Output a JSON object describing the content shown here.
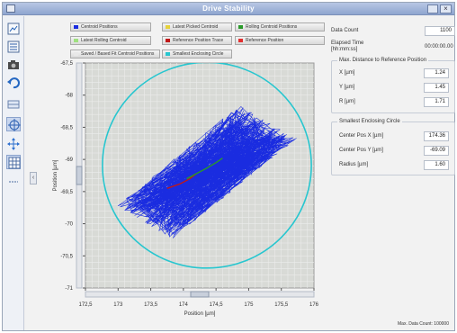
{
  "window": {
    "title": "Drive Stability"
  },
  "toolbar": {
    "tools": [
      {
        "name": "export-image-icon"
      },
      {
        "name": "export-data-icon"
      },
      {
        "name": "camera-icon"
      },
      {
        "name": "undo-icon"
      },
      {
        "name": "toggle-view-icon"
      },
      {
        "name": "target-icon"
      },
      {
        "name": "move-icon"
      },
      {
        "name": "grid-icon"
      },
      {
        "name": "separator-icon"
      }
    ]
  },
  "legend": {
    "items": [
      {
        "label": "Centroid Positions",
        "color": "#1a2ce0"
      },
      {
        "label": "Latest Picked Centroid",
        "color": "#e6d23a"
      },
      {
        "label": "Rolling Centroid Positions",
        "color": "#2a9a2a"
      },
      {
        "label": "Latest Rolling Centroid",
        "color": "#9fe080"
      },
      {
        "label": "Reference Position Trace",
        "color": "#c01818"
      },
      {
        "label": "Reference Position",
        "color": "#e33030"
      },
      {
        "label": "Saved / Based Fit Centroid Positions",
        "color": "#e8e8e8"
      },
      {
        "label": "Smallest Enclosing Circle",
        "color": "#27c6cf"
      }
    ]
  },
  "chart_data": {
    "type": "scatter",
    "title": "",
    "xlabel": "Position [µm]",
    "ylabel": "Position [µm]",
    "xlim": [
      172.5,
      176
    ],
    "ylim": [
      -71,
      -67.5
    ],
    "x_ticks": [
      "172,5",
      "173",
      "173,5",
      "174",
      "174,5",
      "175",
      "175,5",
      "176"
    ],
    "x_tick_values": [
      172.5,
      173,
      173.5,
      174,
      174.5,
      175,
      175.5,
      176
    ],
    "y_ticks": [
      "-67,5",
      "-68",
      "-68,5",
      "-69",
      "-69,5",
      "-70",
      "-70,5",
      "-71"
    ],
    "y_tick_values": [
      -67.5,
      -68,
      -68.5,
      -69,
      -69.5,
      -70,
      -70.5,
      -71
    ],
    "grid": true,
    "enclosing_circle": {
      "center_x": 174.36,
      "center_y": -69.09,
      "radius": 1.6,
      "color": "#27c6cf"
    },
    "reference_trace": {
      "x": [
        173.75,
        173.95,
        174.1,
        174.2
      ],
      "y": [
        -69.45,
        -69.38,
        -69.3,
        -69.22
      ],
      "color": "#c01818"
    },
    "rolling_trace": {
      "x": [
        174.05,
        174.2,
        174.35,
        174.5,
        174.6
      ],
      "y": [
        -69.3,
        -69.22,
        -69.14,
        -69.05,
        -68.98
      ],
      "color": "#2a9a2a"
    },
    "centroid_series": {
      "count": 1100,
      "mean_x": 174.36,
      "mean_y": -69.2,
      "color": "#1a2ce0"
    }
  },
  "side": {
    "data_count_label": "Data Count",
    "data_count_value": "1100",
    "elapsed_label": "Elapsed Time",
    "elapsed_sub": "[hh:mm:ss]",
    "elapsed_value": "00:00:00.00",
    "max_dist_title": "Max. Distance to Reference Position",
    "x_label": "X [µm]",
    "x_value": "1.24",
    "y_label": "Y [µm]",
    "y_value": "1.45",
    "r_label": "R [µm]",
    "r_value": "1.71",
    "circle_title": "Smallest Enclosing Circle",
    "cx_label": "Center Pos X [µm]",
    "cx_value": "174.36",
    "cy_label": "Center Pos Y [µm]",
    "cy_value": "-69.09",
    "radius_label": "Radius [µm]",
    "radius_value": "1.60"
  },
  "footer": {
    "max_data_count": "Max. Data Count: 100000"
  }
}
